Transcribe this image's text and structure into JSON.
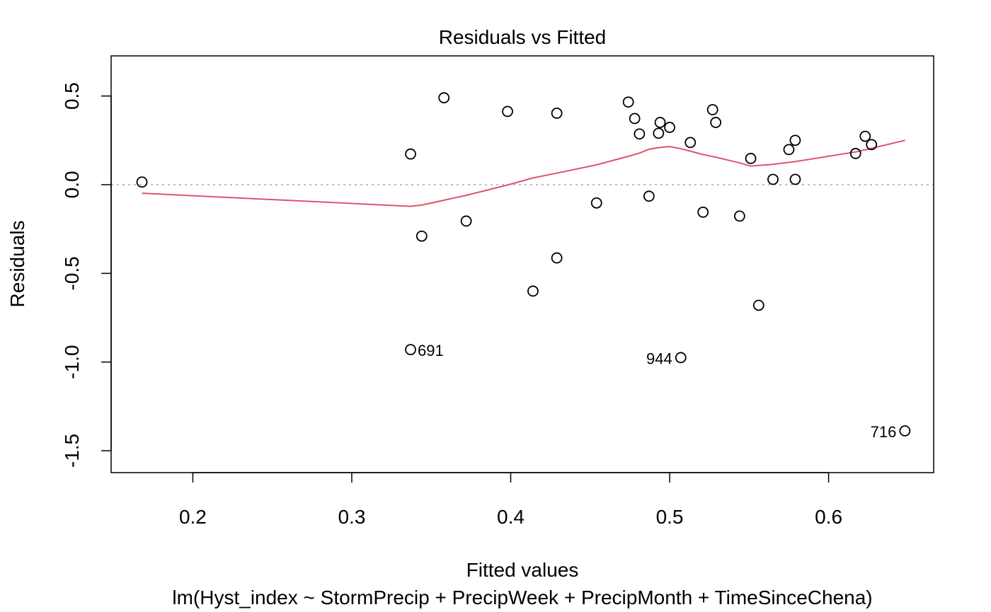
{
  "chart_data": {
    "type": "scatter",
    "title": "Residuals vs Fitted",
    "xlabel": "Fitted values",
    "subtitle": "lm(Hyst_index ~ StormPrecip + PrecipWeek + PrecipMonth + TimeSinceChena)",
    "ylabel": "Residuals",
    "xlim": [
      0.1486,
      0.6661
    ],
    "ylim": [
      -1.6235,
      0.7262
    ],
    "xticks": [
      0.2,
      0.3,
      0.4,
      0.5,
      0.6
    ],
    "xtick_labels": [
      "0.2",
      "0.3",
      "0.4",
      "0.5",
      "0.6"
    ],
    "yticks": [
      -1.5,
      -1.0,
      -0.5,
      0.0,
      0.5
    ],
    "ytick_labels": [
      "-1.5",
      "-1.0",
      "-0.5",
      "0.0",
      "0.5"
    ],
    "reference_line": {
      "y": 0,
      "style": "dotted",
      "color": "#BEBEBE"
    },
    "points": [
      {
        "x": 0.168,
        "y": 0.015
      },
      {
        "x": 0.337,
        "y": 0.173
      },
      {
        "x": 0.337,
        "y": -0.93,
        "label": "691"
      },
      {
        "x": 0.344,
        "y": -0.29
      },
      {
        "x": 0.358,
        "y": 0.49
      },
      {
        "x": 0.372,
        "y": -0.205
      },
      {
        "x": 0.398,
        "y": 0.413
      },
      {
        "x": 0.414,
        "y": -0.6
      },
      {
        "x": 0.429,
        "y": 0.403
      },
      {
        "x": 0.429,
        "y": -0.413
      },
      {
        "x": 0.454,
        "y": -0.103
      },
      {
        "x": 0.474,
        "y": 0.466
      },
      {
        "x": 0.478,
        "y": 0.373
      },
      {
        "x": 0.481,
        "y": 0.286
      },
      {
        "x": 0.487,
        "y": -0.065
      },
      {
        "x": 0.493,
        "y": 0.29
      },
      {
        "x": 0.494,
        "y": 0.351
      },
      {
        "x": 0.5,
        "y": 0.323
      },
      {
        "x": 0.507,
        "y": -0.975,
        "label": "944"
      },
      {
        "x": 0.513,
        "y": 0.238
      },
      {
        "x": 0.521,
        "y": -0.155
      },
      {
        "x": 0.527,
        "y": 0.423
      },
      {
        "x": 0.529,
        "y": 0.351
      },
      {
        "x": 0.544,
        "y": -0.177
      },
      {
        "x": 0.551,
        "y": 0.148
      },
      {
        "x": 0.556,
        "y": -0.68
      },
      {
        "x": 0.565,
        "y": 0.03
      },
      {
        "x": 0.575,
        "y": 0.198
      },
      {
        "x": 0.579,
        "y": 0.03
      },
      {
        "x": 0.579,
        "y": 0.25
      },
      {
        "x": 0.617,
        "y": 0.176
      },
      {
        "x": 0.623,
        "y": 0.273
      },
      {
        "x": 0.627,
        "y": 0.226
      },
      {
        "x": 0.648,
        "y": -1.388,
        "label": "716"
      }
    ],
    "smooth_line": {
      "color": "#DF536B",
      "x": [
        0.168,
        0.337,
        0.344,
        0.372,
        0.398,
        0.414,
        0.429,
        0.454,
        0.474,
        0.481,
        0.487,
        0.494,
        0.5,
        0.507,
        0.521,
        0.529,
        0.544,
        0.551,
        0.565,
        0.579,
        0.617,
        0.627,
        0.648
      ],
      "y": [
        -0.048,
        -0.122,
        -0.115,
        -0.06,
        -0.002,
        0.038,
        0.065,
        0.112,
        0.16,
        0.178,
        0.2,
        0.21,
        0.215,
        0.203,
        0.17,
        0.155,
        0.123,
        0.105,
        0.115,
        0.13,
        0.185,
        0.205,
        0.25
      ]
    }
  }
}
